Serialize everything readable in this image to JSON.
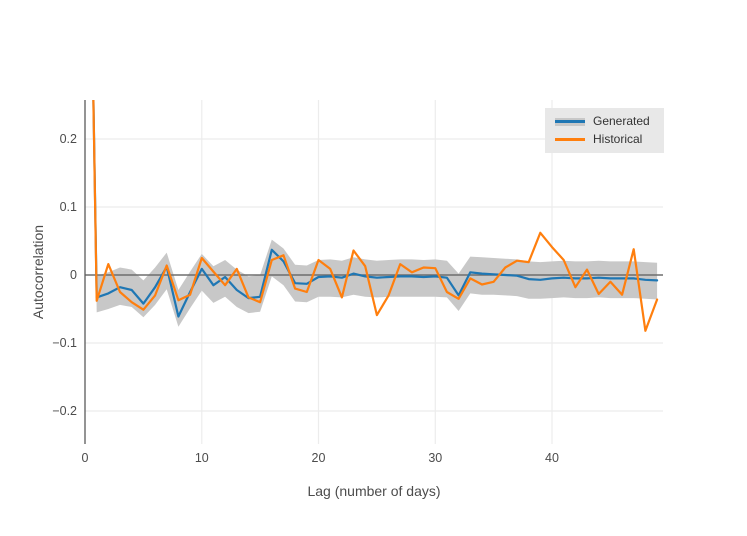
{
  "chart_data": {
    "type": "line",
    "title": "",
    "xlabel": "Lag (number of days)",
    "ylabel": "Autocorrelation",
    "xlim": [
      0,
      49.5
    ],
    "ylim": [
      -0.249,
      0.257
    ],
    "grid": true,
    "zero_line": true,
    "x_tick_values": [
      0,
      10,
      20,
      30,
      40
    ],
    "x_tick_labels": [
      "0",
      "10",
      "20",
      "30",
      "40"
    ],
    "y_tick_values": [
      0.2,
      0.1,
      0,
      -0.1,
      -0.2
    ],
    "y_tick_labels": [
      "0.2",
      "0.1",
      "0",
      "−0.1",
      "−0.2"
    ],
    "x": [
      0,
      1,
      2,
      3,
      4,
      5,
      6,
      7,
      8,
      9,
      10,
      11,
      12,
      13,
      14,
      15,
      16,
      17,
      18,
      19,
      20,
      21,
      22,
      23,
      24,
      25,
      26,
      27,
      28,
      29,
      30,
      31,
      32,
      33,
      34,
      35,
      36,
      37,
      38,
      39,
      40,
      41,
      42,
      43,
      44,
      45,
      46,
      47,
      48,
      49
    ],
    "series": [
      {
        "name": "Generated",
        "color": "#1f77b4",
        "values": [
          1.0,
          -0.033,
          -0.027,
          -0.018,
          -0.022,
          -0.042,
          -0.018,
          0.012,
          -0.061,
          -0.025,
          0.009,
          -0.015,
          -0.003,
          -0.022,
          -0.034,
          -0.032,
          0.037,
          0.02,
          -0.012,
          -0.013,
          -0.003,
          -0.002,
          -0.004,
          0.002,
          -0.002,
          -0.004,
          -0.003,
          -0.002,
          -0.002,
          -0.003,
          -0.002,
          -0.004,
          -0.03,
          0.004,
          0.002,
          0.001,
          0.0,
          -0.001,
          -0.006,
          -0.007,
          -0.005,
          -0.004,
          -0.005,
          -0.005,
          -0.004,
          -0.005,
          -0.005,
          -0.005,
          -0.007,
          -0.008
        ]
      },
      {
        "name": "Historical",
        "color": "#ff7f0e",
        "values": [
          1.0,
          -0.038,
          0.016,
          -0.025,
          -0.04,
          -0.051,
          -0.03,
          0.014,
          -0.037,
          -0.029,
          0.025,
          0.005,
          -0.015,
          0.009,
          -0.033,
          -0.04,
          0.022,
          0.029,
          -0.02,
          -0.025,
          0.022,
          0.009,
          -0.033,
          0.036,
          0.013,
          -0.059,
          -0.03,
          0.016,
          0.004,
          0.011,
          0.01,
          -0.025,
          -0.035,
          -0.005,
          -0.014,
          -0.01,
          0.011,
          0.021,
          0.019,
          0.062,
          0.041,
          0.022,
          -0.018,
          0.008,
          -0.028,
          -0.01,
          -0.029,
          0.038,
          -0.082,
          -0.036
        ]
      }
    ],
    "confidence_band": {
      "name": "Generated confidence band",
      "color": "#c8c8c8",
      "upper": [
        1.03,
        -0.001,
        0.004,
        0.011,
        0.008,
        -0.008,
        0.011,
        0.033,
        -0.022,
        0.005,
        0.031,
        0.013,
        0.022,
        0.008,
        -0.002,
        0.0,
        0.052,
        0.039,
        0.015,
        0.014,
        0.022,
        0.023,
        0.021,
        0.026,
        0.023,
        0.021,
        0.022,
        0.023,
        0.023,
        0.022,
        0.023,
        0.021,
        0.002,
        0.027,
        0.026,
        0.025,
        0.024,
        0.023,
        0.02,
        0.019,
        0.02,
        0.021,
        0.02,
        0.02,
        0.021,
        0.02,
        0.02,
        0.02,
        0.019,
        0.018
      ],
      "lower": [
        0.97,
        -0.055,
        -0.05,
        -0.044,
        -0.047,
        -0.062,
        -0.044,
        -0.021,
        -0.076,
        -0.049,
        -0.023,
        -0.041,
        -0.032,
        -0.047,
        -0.056,
        -0.054,
        -0.002,
        -0.015,
        -0.039,
        -0.04,
        -0.032,
        -0.032,
        -0.033,
        -0.029,
        -0.032,
        -0.033,
        -0.032,
        -0.032,
        -0.032,
        -0.032,
        -0.032,
        -0.033,
        -0.053,
        -0.027,
        -0.029,
        -0.029,
        -0.03,
        -0.031,
        -0.035,
        -0.035,
        -0.034,
        -0.033,
        -0.034,
        -0.034,
        -0.033,
        -0.034,
        -0.034,
        -0.034,
        -0.035,
        -0.036
      ]
    },
    "legend": {
      "position": "top-right",
      "background": "#e8e8e8",
      "entries": [
        "Generated",
        "Historical"
      ]
    },
    "colors": {
      "grid": "#ececec",
      "axis_line": "#5a5a5a",
      "zero_line": "#6e6e6e",
      "tick_text": "#4c4c4c"
    }
  }
}
